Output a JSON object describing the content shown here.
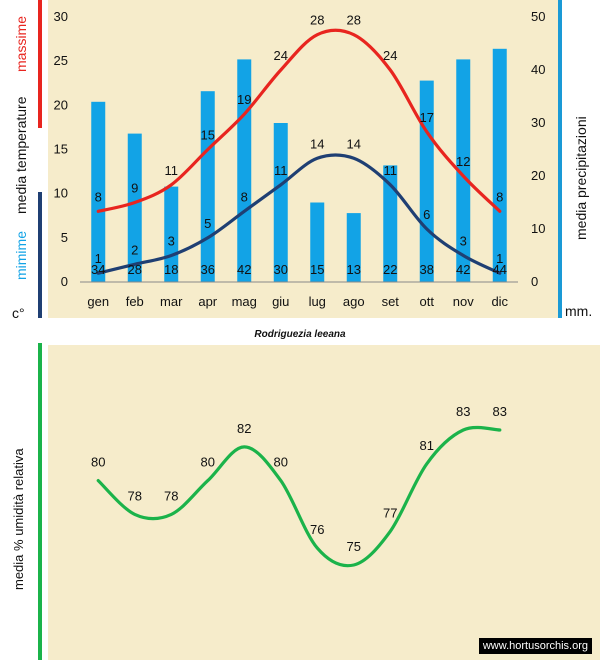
{
  "colors": {
    "paper": "#f6eccb",
    "max_temp": "#e8251f",
    "min_temp": "#1f3f73",
    "precip": "#12a3e6",
    "humidity": "#1bb34a",
    "axis_right": "#1a9ad6",
    "text": "#111111"
  },
  "subtitle": "Rodriguezia leeana",
  "watermark": "www.hortusorchis.org",
  "chart_data": [
    {
      "type": "line+bar",
      "categories": [
        "gen",
        "feb",
        "mar",
        "apr",
        "mag",
        "giu",
        "lug",
        "ago",
        "set",
        "ott",
        "nov",
        "dic"
      ],
      "left_axis": {
        "ylim": [
          0,
          30
        ],
        "ticks": [
          "0",
          "5",
          "10",
          "15",
          "20",
          "25",
          "30"
        ],
        "label_parts": [
          "mimime",
          "media  temperature",
          "massime"
        ],
        "unit": "c°"
      },
      "right_axis": {
        "ylim": [
          0,
          50
        ],
        "ticks": [
          "0",
          "10",
          "20",
          "30",
          "40",
          "50"
        ],
        "label": "media  precipitazioni",
        "unit": "mm."
      },
      "series": [
        {
          "name": "massime",
          "kind": "line",
          "axis": "left",
          "values": [
            8,
            9,
            11,
            15,
            19,
            24,
            28,
            28,
            24,
            17,
            12,
            8
          ]
        },
        {
          "name": "mimime",
          "kind": "line",
          "axis": "left",
          "values": [
            1,
            2,
            3,
            5,
            8,
            11,
            14,
            14,
            11,
            6,
            3,
            1
          ]
        },
        {
          "name": "media  precipitazioni",
          "kind": "bar",
          "axis": "right",
          "values": [
            34,
            28,
            18,
            36,
            42,
            30,
            15,
            13,
            22,
            38,
            42,
            44
          ]
        }
      ]
    },
    {
      "type": "line",
      "categories": [
        "gen",
        "feb",
        "mar",
        "apr",
        "mag",
        "giu",
        "lug",
        "ago",
        "set",
        "ott",
        "nov",
        "dic"
      ],
      "ylabel": "media %  umidità relativa",
      "series": [
        {
          "name": "media %  umidità relativa",
          "values": [
            80,
            78,
            78,
            80,
            82,
            80,
            76,
            75,
            77,
            81,
            83,
            83
          ]
        }
      ]
    }
  ]
}
